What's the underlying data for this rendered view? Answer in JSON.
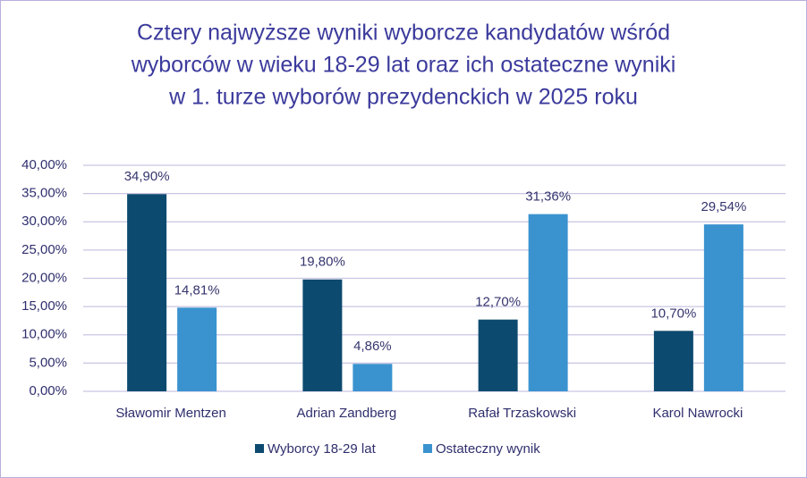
{
  "chart_data": {
    "type": "bar",
    "title": [
      "Cztery najwyższe wyniki wyborcze kandydatów wśród",
      "wyborców w wieku 18-29 lat oraz ich ostateczne wyniki",
      "w 1. turze wyborów prezydenckich w 2025 roku"
    ],
    "categories": [
      "Sławomir Mentzen",
      "Adrian Zandberg",
      "Rafał Trzaskowski",
      "Karol Nawrocki"
    ],
    "series": [
      {
        "name": "Wyborcy 18-29 lat",
        "color": "#0d4a6f",
        "values": [
          34.9,
          19.8,
          12.7,
          10.7
        ],
        "value_labels": [
          "34,90%",
          "19,80%",
          "12,70%",
          "10,70%"
        ]
      },
      {
        "name": "Ostateczny wynik",
        "color": "#3a93cf",
        "values": [
          14.81,
          4.86,
          31.36,
          29.54
        ],
        "value_labels": [
          "14,81%",
          "4,86%",
          "31,36%",
          "29,54%"
        ]
      }
    ],
    "ylim": [
      0,
      40
    ],
    "yticks": [
      {
        "value": 0,
        "label": "0,00%"
      },
      {
        "value": 5,
        "label": "5,00%"
      },
      {
        "value": 10,
        "label": "10,00%"
      },
      {
        "value": 15,
        "label": "15,00%"
      },
      {
        "value": 20,
        "label": "20,00%"
      },
      {
        "value": 25,
        "label": "25,00%"
      },
      {
        "value": 30,
        "label": "30,00%"
      },
      {
        "value": 35,
        "label": "35,00%"
      },
      {
        "value": 40,
        "label": "40,00%"
      }
    ],
    "grid": true,
    "legend": "bottom"
  }
}
